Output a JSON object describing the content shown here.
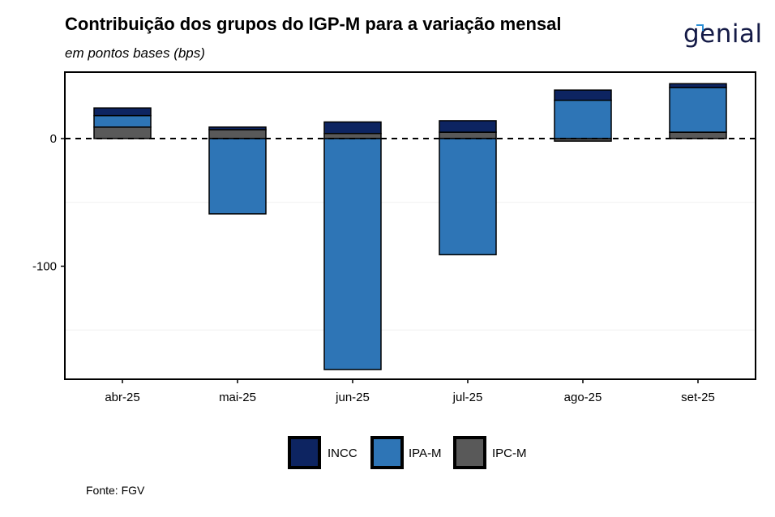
{
  "header": {
    "title": "Contribuição dos grupos do IGP-M para a variação mensal",
    "subtitle": "em pontos bases (bps)",
    "logo_text": "genial"
  },
  "footer": {
    "source": "Fonte: FGV"
  },
  "colors": {
    "INCC": "#0d2461",
    "IPA-M": "#2e75b6",
    "IPC-M": "#595959"
  },
  "chart_data": {
    "type": "bar",
    "stacked": true,
    "title": "Contribuição dos grupos do IGP-M para a variação mensal",
    "subtitle": "em pontos bases (bps)",
    "categories": [
      "abr-25",
      "mai-25",
      "jun-25",
      "jul-25",
      "ago-25",
      "set-25"
    ],
    "series": [
      {
        "name": "INCC",
        "values": [
          6,
          2,
          9,
          9,
          8,
          3
        ]
      },
      {
        "name": "IPA-M",
        "values": [
          9,
          -59,
          -181,
          -91,
          30,
          35
        ]
      },
      {
        "name": "IPC-M",
        "values": [
          9,
          7,
          4,
          5,
          -2,
          5
        ]
      }
    ],
    "yticks": [
      0,
      -100
    ],
    "ylim": [
      -190,
      50
    ],
    "grid": true,
    "zero_line": "dashed",
    "legend": "bottom",
    "xlabel": "",
    "ylabel": ""
  }
}
